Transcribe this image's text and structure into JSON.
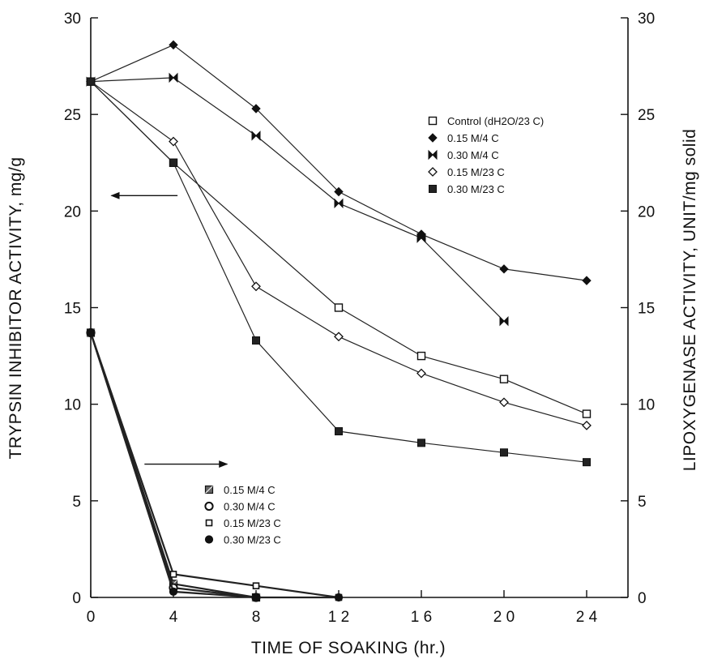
{
  "chart_data": {
    "type": "line",
    "xlabel": "TIME OF SOAKING  (hr.)",
    "ylabel_left": "TRYPSIN INHIBITOR ACTIVITY,  mg/g",
    "ylabel_right": "LIPOXYGENASE ACTIVITY, UNIT/mg solid",
    "xlim": [
      0,
      26
    ],
    "ylim_left": [
      0,
      30
    ],
    "ylim_right": [
      0,
      30
    ],
    "x_ticks": [
      0,
      4,
      8,
      12,
      16,
      20,
      24
    ],
    "x_tick_labels": [
      "0",
      "4",
      "8",
      "1 2",
      "1 6",
      "2 0",
      "2 4"
    ],
    "y_ticks_left": [
      0,
      5,
      10,
      15,
      20,
      25,
      30
    ],
    "y_ticks_right": [
      0,
      5,
      10,
      15,
      20,
      25,
      30
    ],
    "grid": false,
    "legend_trypsin_position": "top-right",
    "legend_lipoxygenase_position": "bottom-center",
    "trypsin_series": [
      {
        "name": "Control    (dH2O/23 C)",
        "marker": "open-square",
        "x": [
          0,
          4,
          12,
          16,
          20,
          24
        ],
        "y": [
          26.7,
          22.5,
          15.0,
          12.5,
          11.3,
          9.5
        ]
      },
      {
        "name": "0.15 M/4 C",
        "marker": "filled-diamond",
        "x": [
          0,
          4,
          8,
          12,
          16,
          20,
          24
        ],
        "y": [
          26.7,
          28.6,
          25.3,
          21.0,
          18.8,
          17.0,
          16.4
        ]
      },
      {
        "name": "0.30 M/4 C",
        "marker": "bowtie",
        "x": [
          0,
          4,
          8,
          12,
          16,
          20
        ],
        "y": [
          26.7,
          26.9,
          23.9,
          20.4,
          18.6,
          14.3
        ]
      },
      {
        "name": "0.15 M/23 C",
        "marker": "open-diamond",
        "x": [
          0,
          4,
          8,
          12,
          16,
          20,
          24
        ],
        "y": [
          26.7,
          23.6,
          16.1,
          13.5,
          11.6,
          10.1,
          8.9
        ]
      },
      {
        "name": "0.30 M/23 C",
        "marker": "filled-square",
        "x": [
          0,
          4,
          8,
          12,
          16,
          20,
          24
        ],
        "y": [
          26.7,
          22.5,
          13.3,
          8.6,
          8.0,
          7.5,
          7.0
        ]
      }
    ],
    "lipoxygenase_series": [
      {
        "name": "0.15 M/4 C",
        "marker": "hatched-square",
        "x": [
          0,
          4,
          8
        ],
        "y": [
          13.7,
          0.7,
          0.0
        ]
      },
      {
        "name": "0.30 M/4 C",
        "marker": "open-circle",
        "x": [
          0,
          4,
          8
        ],
        "y": [
          13.7,
          0.5,
          0.0
        ]
      },
      {
        "name": "0.15 M/23 C",
        "marker": "small-square",
        "x": [
          0,
          4,
          8,
          12
        ],
        "y": [
          13.7,
          1.2,
          0.6,
          0.0
        ]
      },
      {
        "name": "0.30 M/23 C",
        "marker": "filled-circle",
        "x": [
          0,
          4,
          8,
          12
        ],
        "y": [
          13.7,
          0.3,
          0.0,
          0.0
        ]
      }
    ],
    "annotations": [
      {
        "type": "arrow",
        "direction": "left",
        "meaning": "trypsin curves read on left axis",
        "x_from": 4.2,
        "x_to": 1.0,
        "y_left": 20.8
      },
      {
        "type": "arrow",
        "direction": "right",
        "meaning": "lipoxygenase curves read on right axis",
        "x_from": 2.6,
        "x_to": 6.6,
        "y_left": 6.9
      }
    ]
  }
}
